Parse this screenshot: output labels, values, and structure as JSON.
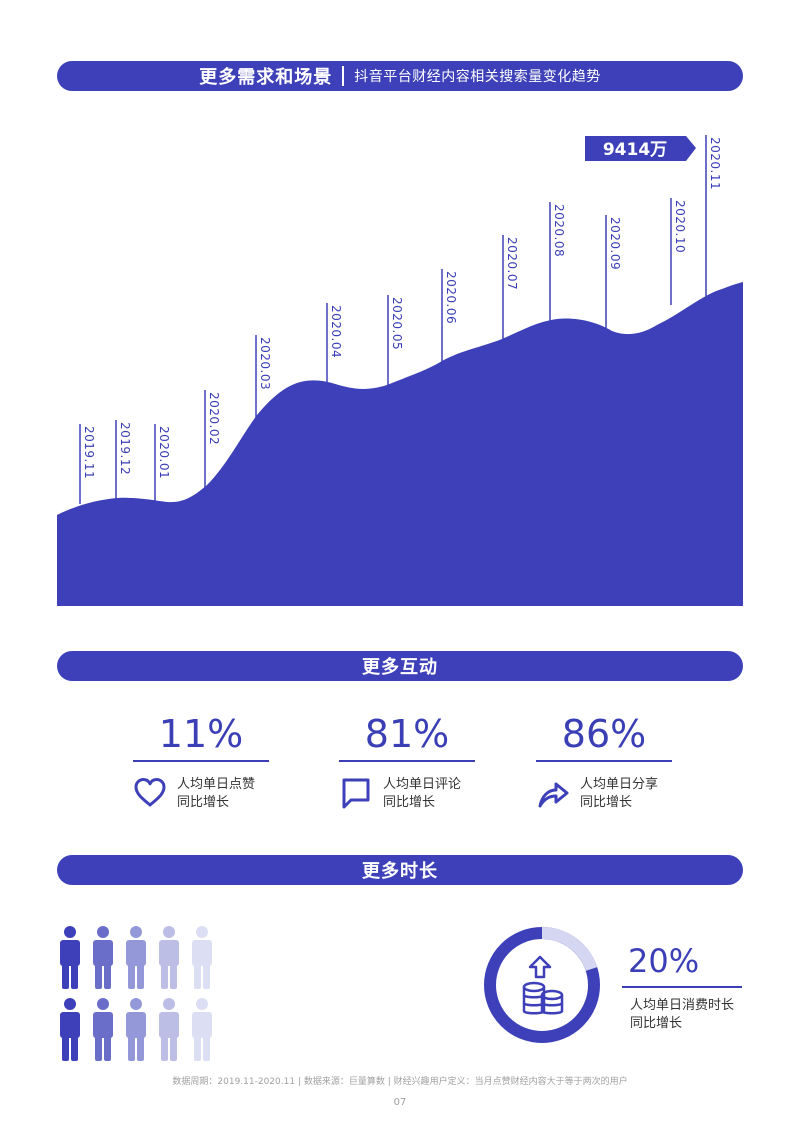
{
  "section1": {
    "title": "更多需求和场景",
    "subtitle": "抖音平台财经内容相关搜索量变化趋势"
  },
  "chart_data": {
    "type": "area",
    "x": [
      "2019.11",
      "2019.12",
      "2020.01",
      "2020.02",
      "2020.03",
      "2020.04",
      "2020.05",
      "2020.06",
      "2020.07",
      "2020.08",
      "2020.09",
      "2020.10",
      "2020.11"
    ],
    "callout": "9414万",
    "color": "#3d40b8"
  },
  "section2": {
    "title": "更多互动",
    "stats": [
      {
        "pct": "11%",
        "line1": "人均单日点赞",
        "line2": "同比增长",
        "icon": "heart-icon"
      },
      {
        "pct": "81%",
        "line1": "人均单日评论",
        "line2": "同比增长",
        "icon": "comment-icon"
      },
      {
        "pct": "86%",
        "line1": "人均单日分享",
        "line2": "同比增长",
        "icon": "share-icon"
      }
    ]
  },
  "section3": {
    "title": "更多时长",
    "pct": "20%",
    "progress": 0.2,
    "line1": "人均单日消费时长",
    "line2": "同比增长",
    "people_colors": [
      "#3d40b8",
      "#6b6ec9",
      "#9598d8",
      "#bcbee6",
      "#dcdef3"
    ]
  },
  "footer": {
    "note": "数据周期：2019.11-2020.11 | 数据来源：巨量算数 | 财经兴趣用户定义：当月点赞财经内容大于等于两次的用户",
    "page": "07"
  }
}
